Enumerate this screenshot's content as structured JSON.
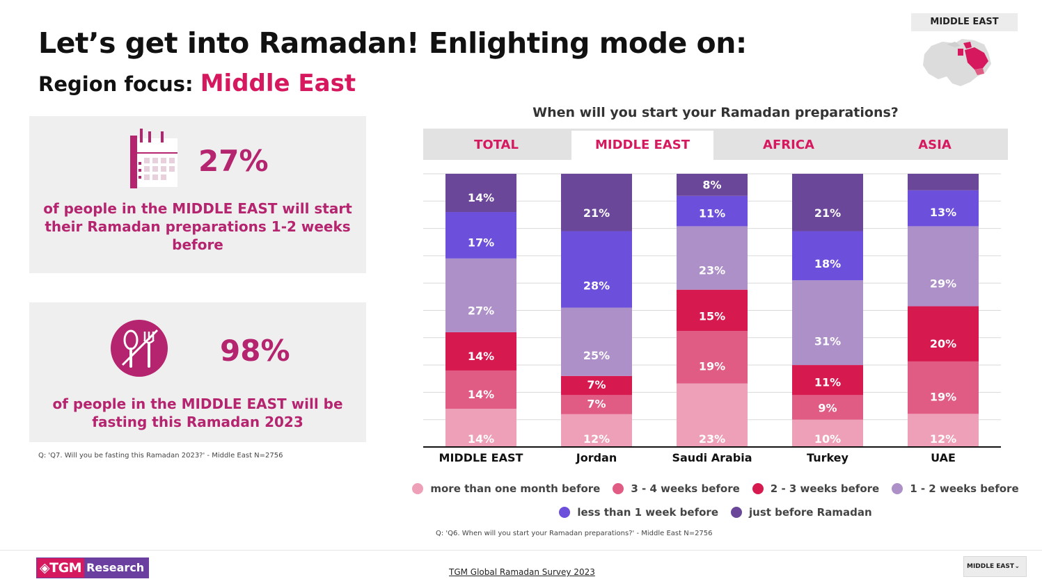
{
  "header": {
    "title": "Let’s get into Ramadan! Enlighting mode on:",
    "subtitle_prefix": "Region focus: ",
    "subtitle_region": "Middle East",
    "region_badge": "MIDDLE EAST"
  },
  "cards": [
    {
      "percent": "27%",
      "text": "of people in the MIDDLE EAST will start their Ramadan preparations 1-2 weeks before",
      "icon": "calendar-icon"
    },
    {
      "percent": "98%",
      "text": "of people in the MIDDLE EAST will be fasting this Ramadan 2023",
      "icon": "no-eating-icon"
    }
  ],
  "notes": {
    "left": "Q: 'Q7. Will you be fasting this Ramadan 2023?' - Middle East N=2756",
    "chart": "Q: 'Q6. When will you start your Ramadan preparations?' - Middle East N=2756"
  },
  "tabs": [
    "TOTAL",
    "MIDDLE EAST",
    "AFRICA",
    "ASIA"
  ],
  "active_tab": "MIDDLE EAST",
  "colors": {
    "accent": "#d6195f",
    "card_text": "#b5246e",
    "brand_purple": "#6b3fa0"
  },
  "chart_data": {
    "type": "bar",
    "stacked": true,
    "normalized_100": true,
    "title": "When will you start your Ramadan preparations?",
    "categories": [
      "MIDDLE EAST",
      "Jordan",
      "Saudi Arabia",
      "Turkey",
      "UAE"
    ],
    "series": [
      {
        "name": "more than one month before",
        "color": "#eea0b8",
        "values": [
          14,
          12,
          23,
          10,
          12
        ],
        "labels": [
          "14%",
          "12%",
          "23%",
          "10%",
          "12%"
        ]
      },
      {
        "name": "3 - 4 weeks before",
        "color": "#e05c84",
        "values": [
          14,
          7,
          19,
          9,
          19
        ],
        "labels": [
          "14%",
          "7%",
          "19%",
          "9%",
          "19%"
        ]
      },
      {
        "name": "2 - 3 weeks before",
        "color": "#d61a50",
        "values": [
          14,
          7,
          15,
          11,
          20
        ],
        "labels": [
          "14%",
          "7%",
          "15%",
          "11%",
          "20%"
        ]
      },
      {
        "name": "1 - 2 weeks before",
        "color": "#ad90c8",
        "values": [
          27,
          25,
          23,
          31,
          29
        ],
        "labels": [
          "27%",
          "25%",
          "23%",
          "31%",
          "29%"
        ]
      },
      {
        "name": "less than 1 week before",
        "color": "#6c4fdb",
        "values": [
          17,
          28,
          11,
          18,
          13
        ],
        "labels": [
          "17%",
          "28%",
          "11%",
          "18%",
          "13%"
        ]
      },
      {
        "name": "just before Ramadan",
        "color": "#6b4799",
        "values": [
          14,
          21,
          8,
          21,
          6
        ],
        "labels": [
          "14%",
          "21%",
          "8%",
          "21%",
          ""
        ]
      }
    ],
    "ylim": [
      0,
      100
    ],
    "grid": true,
    "legend_position": "bottom"
  },
  "footer": {
    "logo_left": "◈TGM",
    "logo_right": "Research",
    "survey_link": "TGM Global Ramadan Survey 2023",
    "dropdown_value": "MIDDLE EAST",
    "dropdown_icon": "chevron-down-icon"
  }
}
